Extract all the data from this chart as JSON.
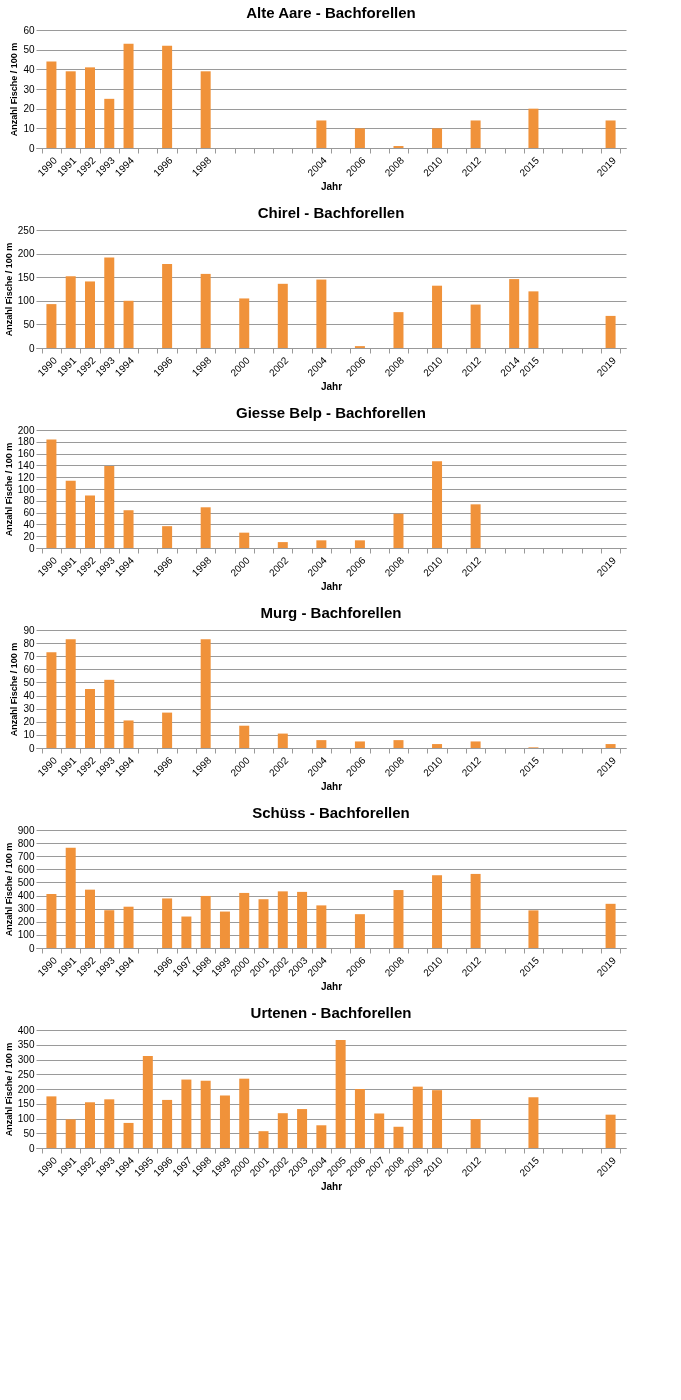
{
  "chart_data": [
    {
      "type": "bar",
      "title": "Alte Aare - Bachforellen",
      "xlabel": "Jahr",
      "ylabel": "Anzahl Fische / 100 m",
      "categories": [
        "1990",
        "1991",
        "1992",
        "1993",
        "1994",
        null,
        "1996",
        null,
        "1998",
        null,
        null,
        null,
        null,
        null,
        "2004",
        null,
        "2006",
        null,
        "2008",
        null,
        "2010",
        null,
        "2012",
        null,
        null,
        "2015",
        null,
        null,
        null,
        "2019"
      ],
      "series": [
        {
          "color": "#f0923a",
          "values": [
            44,
            39,
            41,
            25,
            53,
            null,
            52,
            null,
            39,
            null,
            null,
            null,
            null,
            null,
            14,
            null,
            10,
            null,
            1,
            null,
            10,
            null,
            14,
            null,
            null,
            20,
            null,
            null,
            null,
            14
          ]
        }
      ],
      "ylim": [
        0,
        60
      ],
      "yticks": [
        0,
        10,
        20,
        30,
        40,
        50,
        60
      ],
      "grid": "y"
    },
    {
      "type": "bar",
      "title": "Chirel - Bachforellen",
      "xlabel": "Jahr",
      "ylabel": "Anzahl Fische / 100 m",
      "categories": [
        "1990",
        "1991",
        "1992",
        "1993",
        "1994",
        null,
        "1996",
        null,
        "1998",
        null,
        "2000",
        null,
        "2002",
        null,
        "2004",
        null,
        "2006",
        null,
        "2008",
        null,
        "2010",
        null,
        "2012",
        null,
        "2014",
        "2015",
        null,
        null,
        null,
        "2019"
      ],
      "series": [
        {
          "color": "#f0923a",
          "values": [
            93,
            152,
            141,
            192,
            100,
            null,
            178,
            null,
            157,
            null,
            105,
            null,
            136,
            null,
            145,
            null,
            4,
            null,
            76,
            null,
            132,
            null,
            92,
            null,
            146,
            120,
            null,
            null,
            null,
            68
          ]
        }
      ],
      "ylim": [
        0,
        250
      ],
      "yticks": [
        0,
        50,
        100,
        150,
        200,
        250
      ],
      "grid": "y"
    },
    {
      "type": "bar",
      "title": "Giesse Belp - Bachforellen",
      "xlabel": "Jahr",
      "ylabel": "Anzahl Fische / 100 m",
      "categories": [
        "1990",
        "1991",
        "1992",
        "1993",
        "1994",
        null,
        "1996",
        null,
        "1998",
        null,
        "2000",
        null,
        "2002",
        null,
        "2004",
        null,
        "2006",
        null,
        "2008",
        null,
        "2010",
        null,
        "2012",
        null,
        null,
        null,
        null,
        null,
        null,
        "2019"
      ],
      "series": [
        {
          "color": "#f0923a",
          "values": [
            184,
            114,
            89,
            139,
            64,
            null,
            37,
            null,
            69,
            null,
            26,
            null,
            10,
            null,
            13,
            null,
            13,
            null,
            58,
            null,
            147,
            null,
            74,
            null,
            null,
            null,
            null,
            null,
            null,
            null
          ]
        }
      ],
      "ylim": [
        0,
        200
      ],
      "yticks": [
        0,
        20,
        40,
        60,
        80,
        100,
        120,
        140,
        160,
        180,
        200
      ],
      "grid": "y"
    },
    {
      "type": "bar",
      "title": "Murg - Bachforellen",
      "xlabel": "Jahr",
      "ylabel": "Anzahl Fische / 100 m",
      "categories": [
        "1990",
        "1991",
        "1992",
        "1993",
        "1994",
        null,
        "1996",
        null,
        "1998",
        null,
        "2000",
        null,
        "2002",
        null,
        "2004",
        null,
        "2006",
        null,
        "2008",
        null,
        "2010",
        null,
        "2012",
        null,
        null,
        "2015",
        null,
        null,
        null,
        "2019"
      ],
      "series": [
        {
          "color": "#f0923a",
          "values": [
            73,
            83,
            45,
            52,
            21,
            null,
            27,
            null,
            83,
            null,
            17,
            null,
            11,
            null,
            6,
            null,
            5,
            null,
            6,
            null,
            3,
            null,
            5,
            null,
            null,
            0.5,
            null,
            null,
            null,
            3
          ]
        }
      ],
      "ylim": [
        0,
        90
      ],
      "yticks": [
        0,
        10,
        20,
        30,
        40,
        50,
        60,
        70,
        80,
        90
      ],
      "grid": "y"
    },
    {
      "type": "bar",
      "title": "Schüss - Bachforellen",
      "xlabel": "Jahr",
      "ylabel": "Anzahl Fische / 100 m",
      "categories": [
        "1990",
        "1991",
        "1992",
        "1993",
        "1994",
        null,
        "1996",
        "1997",
        "1998",
        "1999",
        "2000",
        "2001",
        "2002",
        "2003",
        "2004",
        null,
        "2006",
        null,
        "2008",
        null,
        "2010",
        null,
        "2012",
        null,
        null,
        "2015",
        null,
        null,
        null,
        "2019"
      ],
      "series": [
        {
          "color": "#f0923a",
          "values": [
            412,
            765,
            445,
            288,
            315,
            null,
            378,
            240,
            397,
            278,
            420,
            372,
            432,
            428,
            325,
            null,
            258,
            null,
            442,
            null,
            555,
            null,
            565,
            null,
            null,
            287,
            null,
            null,
            null,
            337
          ]
        }
      ],
      "ylim": [
        0,
        900
      ],
      "yticks": [
        0,
        100,
        200,
        300,
        400,
        500,
        600,
        700,
        800,
        900
      ],
      "grid": "y"
    },
    {
      "type": "bar",
      "title": "Urtenen - Bachforellen",
      "xlabel": "Jahr",
      "ylabel": "Anzahl Fische / 100 m",
      "categories": [
        "1990",
        "1991",
        "1992",
        "1993",
        "1994",
        "1995",
        "1996",
        "1997",
        "1998",
        "1999",
        "2000",
        "2001",
        "2002",
        "2003",
        "2004",
        "2005",
        "2006",
        "2007",
        "2008",
        "2009",
        "2010",
        null,
        "2012",
        null,
        null,
        "2015",
        null,
        null,
        null,
        "2019"
      ],
      "series": [
        {
          "color": "#f0923a",
          "values": [
            175,
            97,
            155,
            165,
            85,
            312,
            163,
            232,
            228,
            178,
            235,
            57,
            118,
            132,
            77,
            366,
            200,
            117,
            72,
            208,
            196,
            null,
            98,
            null,
            null,
            172,
            null,
            null,
            null,
            113
          ]
        }
      ],
      "ylim": [
        0,
        400
      ],
      "yticks": [
        0,
        50,
        100,
        150,
        200,
        250,
        300,
        350,
        400
      ],
      "grid": "y"
    }
  ]
}
